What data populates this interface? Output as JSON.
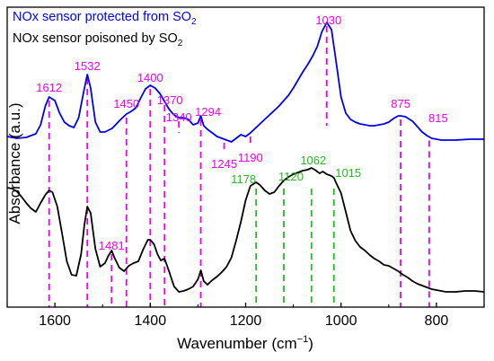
{
  "chart_data": {
    "type": "line",
    "title": "",
    "xlabel": "Wavenumber (cm",
    "xlabel_sup": "−1",
    "xlabel_end": ")",
    "ylabel": "Absorbance (a.u.)",
    "xlim": [
      1700,
      700
    ],
    "x_reversed": true,
    "x_ticks": [
      "1600",
      "1400",
      "1200",
      "1000",
      "800"
    ],
    "x_tick_values": [
      1600,
      1400,
      1200,
      1000,
      800
    ],
    "yticks_shown": false,
    "grid": false,
    "legend": {
      "placement": "top-left",
      "entries": [
        {
          "text": "NOx sensor protected from SO",
          "sub": "2",
          "color": "#0000ee"
        },
        {
          "text": "NOx sensor poisoned by SO",
          "sub": "2",
          "color": "#000000"
        }
      ]
    },
    "series": [
      {
        "name": "NOx sensor protected from SO2",
        "color": "#0000ee",
        "points": [
          [
            1700,
            152
          ],
          [
            1680,
            154
          ],
          [
            1660,
            153
          ],
          [
            1640,
            149
          ],
          [
            1630,
            139
          ],
          [
            1620,
            118
          ],
          [
            1612,
            108
          ],
          [
            1600,
            112
          ],
          [
            1590,
            126
          ],
          [
            1580,
            136
          ],
          [
            1570,
            140
          ],
          [
            1560,
            142
          ],
          [
            1550,
            131
          ],
          [
            1540,
            103
          ],
          [
            1532,
            83
          ],
          [
            1525,
            98
          ],
          [
            1515,
            136
          ],
          [
            1505,
            147
          ],
          [
            1495,
            147
          ],
          [
            1480,
            143
          ],
          [
            1460,
            132
          ],
          [
            1450,
            127
          ],
          [
            1440,
            124
          ],
          [
            1430,
            120
          ],
          [
            1420,
            109
          ],
          [
            1410,
            99
          ],
          [
            1400,
            95
          ],
          [
            1390,
            98
          ],
          [
            1380,
            104
          ],
          [
            1370,
            113
          ],
          [
            1360,
            122
          ],
          [
            1350,
            128
          ],
          [
            1340,
            131
          ],
          [
            1330,
            131
          ],
          [
            1320,
            133
          ],
          [
            1310,
            139
          ],
          [
            1300,
            137
          ],
          [
            1294,
            129
          ],
          [
            1288,
            140
          ],
          [
            1280,
            144
          ],
          [
            1270,
            148
          ],
          [
            1260,
            152
          ],
          [
            1250,
            154
          ],
          [
            1240,
            156
          ],
          [
            1230,
            158
          ],
          [
            1220,
            154
          ],
          [
            1210,
            150
          ],
          [
            1200,
            152
          ],
          [
            1190,
            148
          ],
          [
            1180,
            143
          ],
          [
            1170,
            138
          ],
          [
            1160,
            133
          ],
          [
            1150,
            128
          ],
          [
            1140,
            123
          ],
          [
            1130,
            118
          ],
          [
            1120,
            112
          ],
          [
            1110,
            106
          ],
          [
            1100,
            98
          ],
          [
            1090,
            89
          ],
          [
            1080,
            80
          ],
          [
            1070,
            72
          ],
          [
            1060,
            63
          ],
          [
            1050,
            52
          ],
          [
            1040,
            35
          ],
          [
            1030,
            25
          ],
          [
            1020,
            33
          ],
          [
            1010,
            70
          ],
          [
            1000,
            108
          ],
          [
            990,
            126
          ],
          [
            980,
            133
          ],
          [
            970,
            136
          ],
          [
            960,
            138
          ],
          [
            950,
            139
          ],
          [
            940,
            140
          ],
          [
            930,
            140
          ],
          [
            920,
            139
          ],
          [
            910,
            138
          ],
          [
            900,
            136
          ],
          [
            890,
            132
          ],
          [
            880,
            129
          ],
          [
            875,
            129
          ],
          [
            865,
            130
          ],
          [
            850,
            135
          ],
          [
            840,
            141
          ],
          [
            830,
            147
          ],
          [
            820,
            151
          ],
          [
            810,
            154
          ],
          [
            790,
            156
          ],
          [
            760,
            156
          ],
          [
            730,
            155
          ],
          [
            700,
            155
          ]
        ]
      },
      {
        "name": "NOx sensor poisoned by SO2",
        "color": "#000000",
        "points": [
          [
            1700,
            209
          ],
          [
            1690,
            210
          ],
          [
            1680,
            213
          ],
          [
            1670,
            219
          ],
          [
            1660,
            226
          ],
          [
            1650,
            232
          ],
          [
            1640,
            236
          ],
          [
            1630,
            226
          ],
          [
            1620,
            217
          ],
          [
            1612,
            212
          ],
          [
            1605,
            214
          ],
          [
            1595,
            230
          ],
          [
            1585,
            260
          ],
          [
            1575,
            291
          ],
          [
            1565,
            306
          ],
          [
            1555,
            307
          ],
          [
            1545,
            283
          ],
          [
            1538,
            250
          ],
          [
            1532,
            230
          ],
          [
            1525,
            237
          ],
          [
            1515,
            277
          ],
          [
            1505,
            297
          ],
          [
            1495,
            293
          ],
          [
            1488,
            285
          ],
          [
            1481,
            279
          ],
          [
            1475,
            287
          ],
          [
            1465,
            298
          ],
          [
            1455,
            302
          ],
          [
            1445,
            296
          ],
          [
            1435,
            293
          ],
          [
            1425,
            291
          ],
          [
            1415,
            278
          ],
          [
            1405,
            267
          ],
          [
            1400,
            267
          ],
          [
            1392,
            272
          ],
          [
            1385,
            283
          ],
          [
            1378,
            290
          ],
          [
            1370,
            288
          ],
          [
            1360,
            303
          ],
          [
            1350,
            319
          ],
          [
            1340,
            325
          ],
          [
            1330,
            324
          ],
          [
            1320,
            322
          ],
          [
            1310,
            319
          ],
          [
            1300,
            311
          ],
          [
            1294,
            301
          ],
          [
            1288,
            313
          ],
          [
            1280,
            317
          ],
          [
            1270,
            312
          ],
          [
            1260,
            308
          ],
          [
            1250,
            303
          ],
          [
            1240,
            297
          ],
          [
            1230,
            287
          ],
          [
            1220,
            268
          ],
          [
            1210,
            247
          ],
          [
            1200,
            223
          ],
          [
            1190,
            207
          ],
          [
            1178,
            203
          ],
          [
            1170,
            206
          ],
          [
            1160,
            212
          ],
          [
            1150,
            216
          ],
          [
            1140,
            214
          ],
          [
            1130,
            207
          ],
          [
            1120,
            201
          ],
          [
            1110,
            197
          ],
          [
            1100,
            194
          ],
          [
            1090,
            192
          ],
          [
            1080,
            190
          ],
          [
            1070,
            189
          ],
          [
            1062,
            187
          ],
          [
            1055,
            189
          ],
          [
            1045,
            193
          ],
          [
            1038,
            191
          ],
          [
            1030,
            194
          ],
          [
            1020,
            196
          ],
          [
            1015,
            198
          ],
          [
            1010,
            204
          ],
          [
            1000,
            215
          ],
          [
            990,
            236
          ],
          [
            980,
            257
          ],
          [
            970,
            268
          ],
          [
            960,
            275
          ],
          [
            950,
            279
          ],
          [
            940,
            284
          ],
          [
            930,
            288
          ],
          [
            920,
            291
          ],
          [
            910,
            295
          ],
          [
            900,
            296
          ],
          [
            890,
            299
          ],
          [
            880,
            302
          ],
          [
            870,
            306
          ],
          [
            860,
            309
          ],
          [
            850,
            313
          ],
          [
            840,
            316
          ],
          [
            830,
            318
          ],
          [
            820,
            320
          ],
          [
            810,
            322
          ],
          [
            800,
            323
          ],
          [
            790,
            324
          ],
          [
            780,
            325
          ],
          [
            760,
            325
          ],
          [
            740,
            324
          ],
          [
            720,
            324
          ],
          [
            700,
            325
          ]
        ]
      }
    ],
    "annotations": [
      {
        "text": "1612",
        "x": 1612,
        "color": "#ee00ee",
        "group": "top"
      },
      {
        "text": "1532",
        "x": 1532,
        "color": "#ee00ee",
        "group": "top"
      },
      {
        "text": "1450",
        "x": 1450,
        "color": "#ee00ee",
        "group": "top"
      },
      {
        "text": "1400",
        "x": 1400,
        "color": "#ee00ee",
        "group": "top"
      },
      {
        "text": "1370",
        "x": 1370,
        "color": "#ee00ee",
        "group": "top"
      },
      {
        "text": "1340",
        "x": 1340,
        "color": "#ee00ee",
        "group": "top"
      },
      {
        "text": "1294",
        "x": 1294,
        "color": "#ee00ee",
        "group": "top"
      },
      {
        "text": "1245",
        "x": 1245,
        "color": "#ee00ee",
        "group": "top"
      },
      {
        "text": "1190",
        "x": 1190,
        "color": "#ee00ee",
        "group": "top"
      },
      {
        "text": "1030",
        "x": 1030,
        "color": "#ee00ee",
        "group": "top"
      },
      {
        "text": "875",
        "x": 875,
        "color": "#ee00ee",
        "group": "top"
      },
      {
        "text": "815",
        "x": 815,
        "color": "#ee00ee",
        "group": "top"
      },
      {
        "text": "1481",
        "x": 1481,
        "color": "#ee00ee",
        "group": "bottom"
      },
      {
        "text": "1178",
        "x": 1178,
        "color": "#22bb22",
        "group": "bottom"
      },
      {
        "text": "1120",
        "x": 1120,
        "color": "#22bb22",
        "group": "bottom"
      },
      {
        "text": "1062",
        "x": 1062,
        "color": "#22bb22",
        "group": "bottom"
      },
      {
        "text": "1015",
        "x": 1015,
        "color": "#22bb22",
        "group": "bottom"
      }
    ],
    "colors": {
      "magenta": "#ee00ee",
      "green": "#22bb22",
      "blue": "#0000ee",
      "black": "#000000"
    }
  }
}
